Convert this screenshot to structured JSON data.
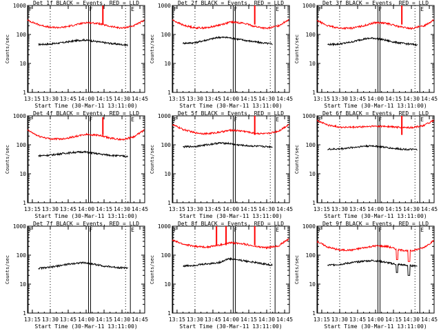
{
  "figure": {
    "ylabel": "Counts/sec",
    "xlabel": "Start Time (30-Mar-11 13:11:00)",
    "x_ticks": [
      "13:15",
      "13:30",
      "13:45",
      "14:00",
      "14:15",
      "14:30",
      "14:45"
    ],
    "y_ticks": [
      "1",
      "10",
      "100",
      "1000"
    ],
    "colors": {
      "events": "#000000",
      "lld": "#ff0000",
      "background": "#ffffff"
    }
  },
  "chart_data": [
    {
      "type": "line",
      "title": "Det 1f BLACK = Events, RED = LLD",
      "markers": [
        "F",
        "F",
        "E"
      ],
      "xlim": [
        "13:11",
        "14:49"
      ],
      "ylim": [
        1,
        1000
      ],
      "y_scale": "log",
      "series": [
        {
          "name": "Events",
          "color": "#000000",
          "x": [
            "13:20",
            "13:30",
            "13:40",
            "13:50",
            "13:58",
            "14:05",
            "14:15",
            "14:25",
            "14:35"
          ],
          "y": [
            45,
            47,
            52,
            60,
            65,
            60,
            52,
            47,
            43
          ]
        },
        {
          "name": "LLD",
          "color": "#ff0000",
          "x": [
            "13:11",
            "13:20",
            "13:30",
            "13:40",
            "13:50",
            "14:00",
            "14:10",
            "14:20",
            "14:30",
            "14:40",
            "14:49"
          ],
          "y": [
            310,
            220,
            175,
            175,
            210,
            260,
            240,
            190,
            165,
            200,
            310
          ]
        }
      ],
      "spikes": [
        {
          "series": "LLD",
          "x": "14:14",
          "y": 1000
        }
      ]
    },
    {
      "type": "line",
      "title": "Det 2f BLACK = Events, RED = LLD",
      "markers": [
        "F",
        "F",
        "E"
      ],
      "xlim": [
        "13:11",
        "14:49"
      ],
      "ylim": [
        1,
        1000
      ],
      "y_scale": "log",
      "series": [
        {
          "name": "Events",
          "color": "#000000",
          "x": [
            "13:20",
            "13:30",
            "13:40",
            "13:50",
            "13:58",
            "14:05",
            "14:15",
            "14:25",
            "14:35"
          ],
          "y": [
            50,
            52,
            65,
            80,
            78,
            70,
            60,
            52,
            47
          ]
        },
        {
          "name": "LLD",
          "color": "#ff0000",
          "x": [
            "13:11",
            "13:20",
            "13:30",
            "13:40",
            "13:50",
            "14:00",
            "14:10",
            "14:20",
            "14:30",
            "14:40",
            "14:49"
          ],
          "y": [
            320,
            210,
            170,
            170,
            210,
            270,
            250,
            190,
            160,
            200,
            340
          ]
        }
      ],
      "spikes": [
        {
          "series": "LLD",
          "x": "14:20",
          "y": 1000
        }
      ]
    },
    {
      "type": "line",
      "title": "Det 3f BLACK = Events, RED = LLD",
      "markers": [
        "F",
        "F",
        "E"
      ],
      "xlim": [
        "13:11",
        "14:49"
      ],
      "ylim": [
        1,
        1000
      ],
      "y_scale": "log",
      "series": [
        {
          "name": "Events",
          "color": "#000000",
          "x": [
            "13:20",
            "13:30",
            "13:40",
            "13:50",
            "13:58",
            "14:05",
            "14:15",
            "14:25",
            "14:35"
          ],
          "y": [
            45,
            47,
            55,
            70,
            75,
            68,
            55,
            48,
            44
          ]
        },
        {
          "name": "LLD",
          "color": "#ff0000",
          "x": [
            "13:11",
            "13:20",
            "13:30",
            "13:40",
            "13:50",
            "14:00",
            "14:10",
            "14:20",
            "14:30",
            "14:40",
            "14:49"
          ],
          "y": [
            300,
            200,
            165,
            165,
            200,
            260,
            240,
            185,
            160,
            195,
            320
          ]
        }
      ],
      "spikes": [
        {
          "series": "LLD",
          "x": "14:22",
          "y": 1000
        }
      ]
    },
    {
      "type": "line",
      "title": "Det 4f BLACK = Events, RED = LLD",
      "markers": [
        "F",
        "F",
        "E"
      ],
      "xlim": [
        "13:11",
        "14:49"
      ],
      "ylim": [
        1,
        1000
      ],
      "y_scale": "log",
      "series": [
        {
          "name": "Events",
          "color": "#000000",
          "x": [
            "13:20",
            "13:30",
            "13:40",
            "13:50",
            "13:58",
            "14:05",
            "14:15",
            "14:25",
            "14:35"
          ],
          "y": [
            42,
            44,
            50,
            55,
            57,
            52,
            46,
            42,
            40
          ]
        },
        {
          "name": "LLD",
          "color": "#ff0000",
          "x": [
            "13:11",
            "13:20",
            "13:30",
            "13:40",
            "13:50",
            "14:00",
            "14:10",
            "14:20",
            "14:30",
            "14:40",
            "14:49"
          ],
          "y": [
            320,
            200,
            160,
            160,
            190,
            230,
            215,
            170,
            150,
            190,
            330
          ]
        }
      ],
      "spikes": [
        {
          "series": "LLD",
          "x": "14:14",
          "y": 900
        }
      ]
    },
    {
      "type": "line",
      "title": "Det 5f BLACK = Events, RED = LLD",
      "markers": [
        "F",
        "F",
        "E"
      ],
      "xlim": [
        "13:11",
        "14:49"
      ],
      "ylim": [
        1,
        1000
      ],
      "y_scale": "log",
      "series": [
        {
          "name": "Events",
          "color": "#000000",
          "x": [
            "13:20",
            "13:30",
            "13:40",
            "13:50",
            "13:58",
            "14:05",
            "14:15",
            "14:25",
            "14:35"
          ],
          "y": [
            85,
            88,
            100,
            115,
            112,
            100,
            92,
            88,
            85
          ]
        },
        {
          "name": "LLD",
          "color": "#ff0000",
          "x": [
            "13:11",
            "13:20",
            "13:30",
            "13:40",
            "13:50",
            "14:00",
            "14:10",
            "14:20",
            "14:30",
            "14:40",
            "14:49"
          ],
          "y": [
            500,
            340,
            260,
            240,
            270,
            320,
            300,
            250,
            240,
            300,
            520
          ]
        }
      ],
      "spikes": [
        {
          "series": "LLD",
          "x": "14:20",
          "y": 1000
        }
      ]
    },
    {
      "type": "line",
      "title": "Det 6f BLACK = Events, RED = LLD",
      "markers": [
        "F",
        "F",
        "E"
      ],
      "xlim": [
        "13:11",
        "14:49"
      ],
      "ylim": [
        1,
        1000
      ],
      "y_scale": "log",
      "series": [
        {
          "name": "Events",
          "color": "#000000",
          "x": [
            "13:20",
            "13:30",
            "13:40",
            "13:50",
            "13:58",
            "14:05",
            "14:15",
            "14:25",
            "14:35"
          ],
          "y": [
            70,
            72,
            80,
            90,
            92,
            85,
            75,
            70,
            68
          ]
        },
        {
          "name": "LLD",
          "color": "#ff0000",
          "x": [
            "13:11",
            "13:20",
            "13:30",
            "13:40",
            "13:50",
            "14:00",
            "14:10",
            "14:20",
            "14:30",
            "14:40",
            "14:49"
          ],
          "y": [
            700,
            480,
            410,
            400,
            420,
            440,
            430,
            400,
            390,
            460,
            700
          ]
        }
      ],
      "spikes": [
        {
          "series": "LLD",
          "x": "14:22",
          "y": 1000
        }
      ]
    },
    {
      "type": "line",
      "title": "Det 7f BLACK = Events, RED = LLD",
      "markers": [
        "F",
        "F",
        "E"
      ],
      "xlim": [
        "13:11",
        "14:49"
      ],
      "ylim": [
        1,
        1000
      ],
      "y_scale": "log",
      "series": [
        {
          "name": "Events",
          "color": "#000000",
          "x": [
            "13:20",
            "13:30",
            "13:40",
            "13:50",
            "13:58",
            "14:05",
            "14:15",
            "14:25",
            "14:35"
          ],
          "y": [
            35,
            38,
            45,
            52,
            55,
            50,
            42,
            38,
            36
          ]
        }
      ],
      "spikes": []
    },
    {
      "type": "line",
      "title": "Det 8f BLACK = Events, RED = LLD",
      "markers": [
        "F",
        "F",
        "E"
      ],
      "xlim": [
        "13:11",
        "14:49"
      ],
      "ylim": [
        1,
        1000
      ],
      "y_scale": "log",
      "series": [
        {
          "name": "Events",
          "color": "#000000",
          "x": [
            "13:20",
            "13:30",
            "13:40",
            "13:50",
            "13:58",
            "14:05",
            "14:15",
            "14:25",
            "14:35"
          ],
          "y": [
            42,
            45,
            50,
            55,
            75,
            70,
            60,
            52,
            45
          ]
        },
        {
          "name": "LLD",
          "color": "#ff0000",
          "x": [
            "13:11",
            "13:20",
            "13:30",
            "13:40",
            "13:50",
            "14:00",
            "14:10",
            "14:20",
            "14:30",
            "14:40",
            "14:49"
          ],
          "y": [
            330,
            240,
            200,
            190,
            220,
            270,
            250,
            200,
            180,
            210,
            380
          ]
        }
      ],
      "spikes": [
        {
          "series": "LLD",
          "x": "13:48",
          "y": 1000
        },
        {
          "series": "LLD",
          "x": "13:56",
          "y": 1000
        },
        {
          "series": "LLD",
          "x": "14:20",
          "y": 1000
        }
      ]
    },
    {
      "type": "line",
      "title": "Det 9f BLACK = Events, RED = LLD",
      "markers": [
        "F",
        "F",
        "E"
      ],
      "xlim": [
        "13:11",
        "14:49"
      ],
      "ylim": [
        1,
        1000
      ],
      "y_scale": "log",
      "series": [
        {
          "name": "Events",
          "color": "#000000",
          "x": [
            "13:20",
            "13:30",
            "13:40",
            "13:50",
            "13:58",
            "14:05",
            "14:15",
            "14:25",
            "14:35"
          ],
          "y": [
            45,
            48,
            55,
            62,
            65,
            60,
            50,
            45,
            42
          ]
        },
        {
          "name": "LLD",
          "color": "#ff0000",
          "x": [
            "13:11",
            "13:20",
            "13:30",
            "13:40",
            "13:50",
            "14:00",
            "14:10",
            "14:20",
            "14:30",
            "14:40",
            "14:49"
          ],
          "y": [
            300,
            190,
            150,
            150,
            180,
            210,
            200,
            150,
            140,
            180,
            320
          ]
        }
      ],
      "dips": [
        {
          "series": "LLD",
          "x": "14:18",
          "y": 70
        },
        {
          "series": "LLD",
          "x": "14:28",
          "y": 60
        },
        {
          "series": "Events",
          "x": "14:18",
          "y": 25
        },
        {
          "series": "Events",
          "x": "14:28",
          "y": 20
        }
      ],
      "spikes": []
    }
  ]
}
